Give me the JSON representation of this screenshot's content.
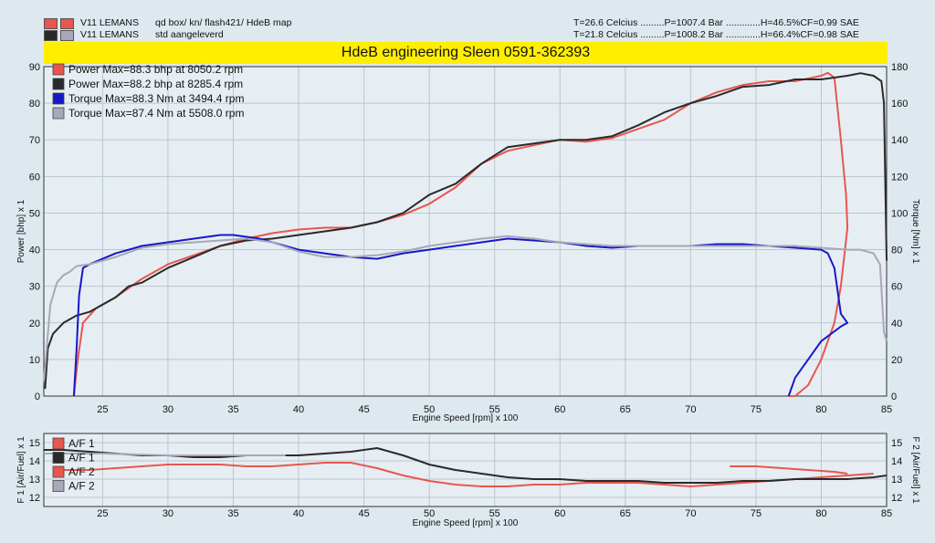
{
  "header": {
    "run1": {
      "car": "V11 LEMANS",
      "desc": "qd box/ kn/ flash421/ HdeB map",
      "cond": "T=26.6 Celcius .........P=1007.4 Bar .............H=46.5%CF=0.99 SAE",
      "color": "#e8564f"
    },
    "run2": {
      "car": "V11 LEMANS",
      "desc": "std aangeleverd",
      "cond": "T=21.8 Celcius .........P=1008.2 Bar .............H=66.4%CF=0.98 SAE",
      "color": "#2a2a2a"
    }
  },
  "banner": "HdeB engineering Sleen 0591-362393",
  "chart_data": [
    {
      "type": "line",
      "xlabel": "Engine Speed [rpm] x 100",
      "ylabel": "Power [bhp] x 1",
      "y2label": "Torque [Nm] x 1",
      "xlim": [
        20.5,
        85
      ],
      "ylim": [
        0,
        90
      ],
      "y2lim": [
        0,
        180
      ],
      "xticks": [
        25,
        30,
        35,
        40,
        45,
        50,
        55,
        60,
        65,
        70,
        75,
        80,
        85
      ],
      "yticks": [
        0,
        10,
        20,
        30,
        40,
        50,
        60,
        70,
        80,
        90
      ],
      "y2ticks": [
        0,
        20,
        40,
        60,
        80,
        100,
        120,
        140,
        160,
        180
      ],
      "grid": true,
      "legend_position": "top-left",
      "series": [
        {
          "name": "Power  Max=88.3 bhp at 8050.2 rpm",
          "axis": "left",
          "color": "#e8564f",
          "x": [
            22.8,
            23.1,
            23.5,
            24.5,
            26,
            28,
            30,
            32,
            34,
            36,
            38,
            40,
            42,
            44,
            46,
            48,
            50,
            52,
            54,
            56,
            58,
            60,
            62,
            64,
            66,
            68,
            70,
            72,
            74,
            76,
            78,
            80,
            80.5,
            81,
            81.5,
            81.9,
            82,
            81.5,
            81,
            80,
            79,
            78,
            77.5
          ],
          "y": [
            0,
            10,
            20,
            24,
            27,
            32,
            36,
            38.5,
            41,
            43,
            44.5,
            45.5,
            46,
            46,
            47.5,
            49.5,
            52.5,
            57,
            63.5,
            67,
            68.5,
            70,
            69.5,
            70.5,
            73,
            75.5,
            80,
            83,
            85,
            86,
            86,
            87.5,
            88.3,
            87,
            70,
            55,
            46,
            30,
            20,
            10,
            3,
            0,
            0
          ]
        },
        {
          "name": "Power  Max=88.2 bhp at 8285.4 rpm",
          "axis": "left",
          "color": "#2a2a2a",
          "x": [
            20.6,
            20.8,
            21.2,
            22,
            23,
            24,
            25,
            26,
            27,
            28,
            30,
            32,
            34,
            36,
            38,
            40,
            42,
            44,
            46,
            48,
            50,
            52,
            54,
            56,
            58,
            60,
            62,
            64,
            66,
            68,
            70,
            72,
            74,
            76,
            78,
            80,
            82,
            83,
            84,
            84.6,
            84.8,
            85
          ],
          "y": [
            2,
            13,
            17,
            20,
            22,
            23,
            25,
            27,
            30,
            31,
            35,
            38,
            41,
            42.5,
            43,
            44,
            45,
            46,
            47.5,
            50,
            55,
            58,
            63.5,
            68,
            69,
            70,
            70,
            71,
            74,
            77.5,
            80,
            82,
            84.5,
            85,
            86.5,
            86.5,
            87.5,
            88.2,
            87.5,
            86,
            80,
            37
          ]
        },
        {
          "name": "Torque  Max=88.3 Nm at 3494.4 rpm",
          "axis": "right",
          "color": "#1818c8",
          "x": [
            22.8,
            23,
            23.2,
            23.5,
            24,
            25,
            26,
            27,
            28,
            30,
            32,
            34,
            35,
            36,
            37,
            38,
            40,
            42,
            44,
            46,
            48,
            50,
            52,
            54,
            56,
            58,
            60,
            62,
            64,
            66,
            68,
            70,
            72,
            74,
            76,
            78,
            80,
            80.5,
            81,
            81.5,
            82,
            81.5,
            80,
            79,
            78,
            77.5
          ],
          "y": [
            0,
            25,
            55,
            70,
            72,
            75,
            78,
            80,
            82,
            84,
            86,
            88,
            88,
            87,
            86,
            84,
            80,
            78,
            76,
            75,
            78,
            80,
            82,
            84,
            86,
            85,
            84,
            82,
            81,
            82,
            82,
            82,
            83,
            83,
            82,
            81,
            80,
            78,
            70,
            45,
            40,
            38,
            30,
            20,
            10,
            0
          ]
        },
        {
          "name": "Torque  Max=87.4 Nm at 5508.0 rpm",
          "axis": "right",
          "color": "#a8a8b8",
          "x": [
            20.5,
            20.7,
            21,
            21.5,
            22,
            22.5,
            23,
            24,
            25,
            26,
            28,
            30,
            32,
            34,
            36,
            38,
            40,
            42,
            44,
            46,
            48,
            50,
            52,
            54,
            56,
            58,
            60,
            62,
            64,
            66,
            68,
            70,
            72,
            74,
            76,
            78,
            80,
            82,
            83,
            84,
            84.5,
            84.8,
            85
          ],
          "y": [
            8,
            25,
            50,
            62,
            66,
            68,
            71,
            72,
            74,
            76,
            81,
            83,
            84,
            85,
            86,
            84,
            79,
            76,
            76,
            77,
            79,
            82,
            84,
            86,
            87.4,
            86,
            84,
            83,
            82,
            82,
            82,
            82,
            82,
            82,
            82,
            82,
            81,
            80,
            80,
            78,
            72,
            35,
            30
          ]
        }
      ]
    },
    {
      "type": "line",
      "xlabel": "Engine Speed [rpm] x 100",
      "ylabel": "F 1 [Air/Fuel] x 1",
      "y2label": "F 2 [Air/Fuel] x 1",
      "xlim": [
        20.5,
        85
      ],
      "ylim": [
        11.5,
        15.5
      ],
      "y2lim": [
        11.5,
        15.5
      ],
      "xticks": [
        25,
        30,
        35,
        40,
        45,
        50,
        55,
        60,
        65,
        70,
        75,
        80,
        85
      ],
      "yticks": [
        12,
        13,
        14,
        15
      ],
      "y2ticks": [
        12,
        13,
        14,
        15
      ],
      "grid": true,
      "legend_position": "top-left",
      "series": [
        {
          "name": "A/F 1",
          "color": "#e8564f",
          "x": [
            22,
            24,
            26,
            28,
            30,
            32,
            34,
            36,
            38,
            40,
            42,
            44,
            46,
            48,
            50,
            52,
            54,
            56,
            58,
            60,
            62,
            64,
            66,
            68,
            70,
            72,
            74,
            76,
            78,
            80,
            82,
            84
          ],
          "y": [
            13.5,
            13.5,
            13.6,
            13.7,
            13.8,
            13.8,
            13.8,
            13.7,
            13.7,
            13.8,
            13.9,
            13.9,
            13.6,
            13.2,
            12.9,
            12.7,
            12.6,
            12.6,
            12.7,
            12.7,
            12.8,
            12.8,
            12.8,
            12.7,
            12.6,
            12.7,
            12.8,
            12.9,
            13,
            13.1,
            13.2,
            13.3
          ]
        },
        {
          "name": "A/F 1",
          "color": "#2a2a2a",
          "x": [
            20.5,
            22,
            24,
            26,
            28,
            30,
            32,
            34,
            36,
            38,
            40,
            42,
            44,
            46,
            48,
            50,
            52,
            54,
            56,
            58,
            60,
            62,
            64,
            66,
            68,
            70,
            72,
            74,
            76,
            78,
            80,
            82,
            84,
            85
          ],
          "y": [
            14.6,
            14.6,
            14.5,
            14.4,
            14.3,
            14.3,
            14.2,
            14.2,
            14.3,
            14.3,
            14.3,
            14.4,
            14.5,
            14.7,
            14.3,
            13.8,
            13.5,
            13.3,
            13.1,
            13,
            13,
            12.9,
            12.9,
            12.9,
            12.8,
            12.8,
            12.8,
            12.9,
            12.9,
            13,
            13,
            13,
            13.1,
            13.2
          ]
        },
        {
          "name": "A/F 2",
          "color": "#e8564f",
          "x": [
            73,
            75,
            77,
            79,
            81,
            82
          ],
          "y": [
            13.7,
            13.7,
            13.6,
            13.5,
            13.4,
            13.3
          ]
        },
        {
          "name": "A/F 2",
          "color": "#a8a8b8",
          "x": [
            20.5,
            25,
            30,
            35,
            38,
            39
          ],
          "y": [
            14.4,
            14.4,
            14.3,
            14.3,
            14.3,
            14.3
          ]
        }
      ]
    }
  ]
}
